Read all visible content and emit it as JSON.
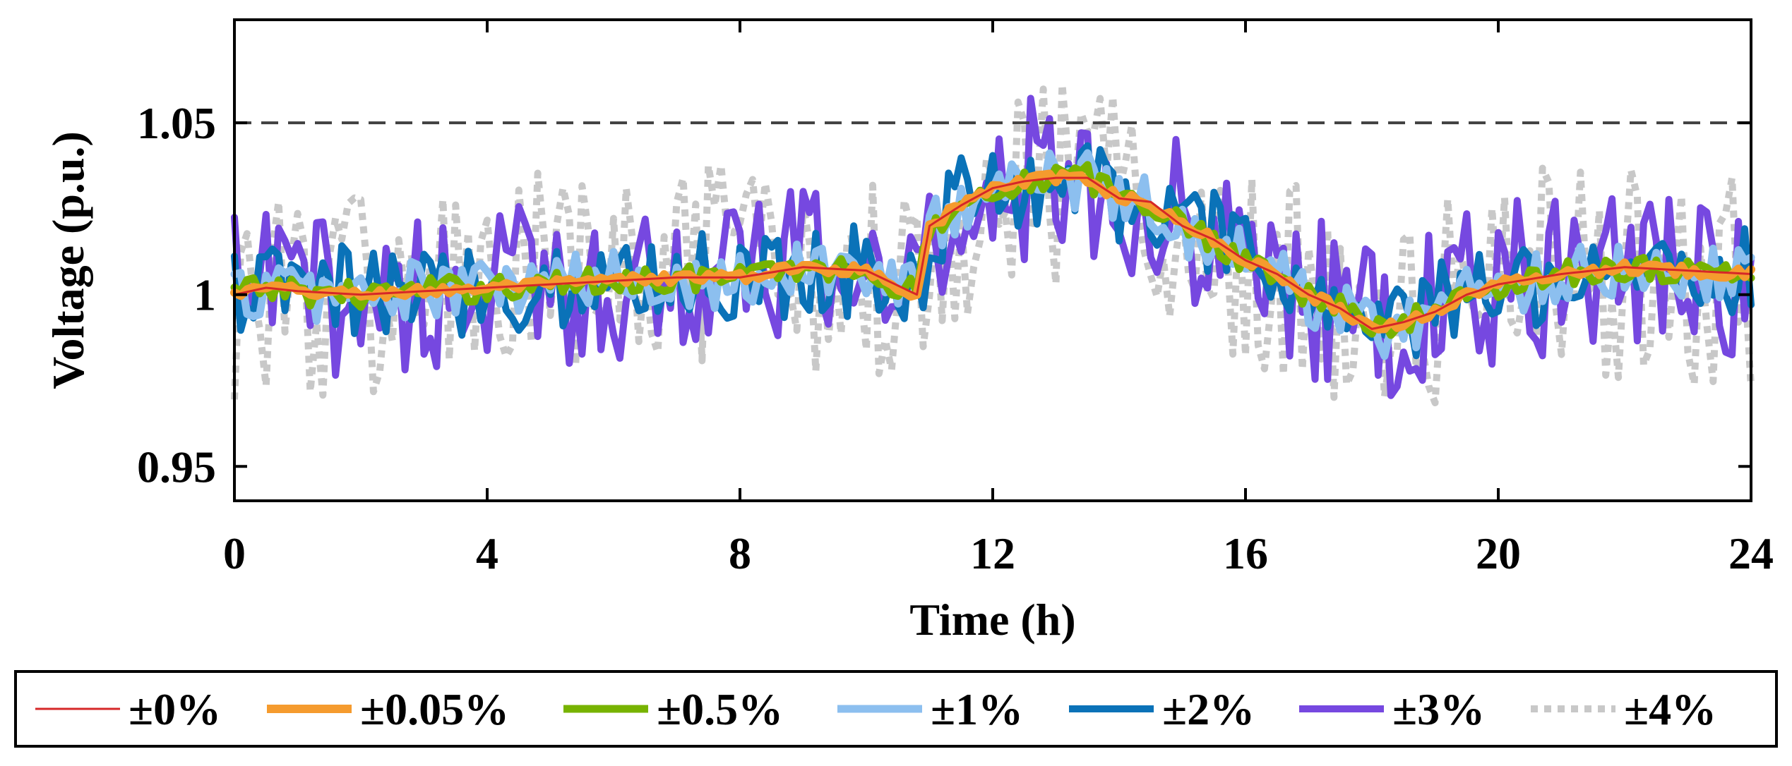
{
  "chart_data": {
    "type": "line",
    "title": "",
    "xlabel": "Time (h)",
    "ylabel": "Voltage (p.u.)",
    "xlim": [
      0,
      24
    ],
    "ylim": [
      0.94,
      1.08
    ],
    "xticks": [
      0,
      4,
      8,
      12,
      16,
      20,
      24
    ],
    "xtick_labels": [
      "0",
      "4",
      "8",
      "12",
      "16",
      "20",
      "24"
    ],
    "yticks": [
      0.95,
      1.0,
      1.05
    ],
    "ytick_labels": [
      "0.95",
      "1",
      "1.05"
    ],
    "grid": false,
    "reference_line": {
      "y": 1.05,
      "style": "dashed",
      "color": "#404040"
    },
    "legend_position": "bottom-outside",
    "base_profile": {
      "x": [
        0,
        0.5,
        1,
        2,
        3,
        4,
        5,
        6,
        7,
        8,
        9,
        10,
        10.8,
        11,
        11.5,
        12,
        12.5,
        13,
        13.5,
        14,
        14.5,
        15,
        15.5,
        16,
        16.5,
        17,
        17.5,
        18,
        18.5,
        19,
        19.5,
        20,
        21,
        22,
        23,
        24
      ],
      "y": [
        1.0,
        1.002,
        1.001,
        1.0,
        1.001,
        1.002,
        1.003,
        1.004,
        1.005,
        1.005,
        1.008,
        1.007,
        1.0,
        1.02,
        1.026,
        1.031,
        1.033,
        1.034,
        1.034,
        1.028,
        1.027,
        1.02,
        1.016,
        1.01,
        1.006,
        1.0,
        0.996,
        0.99,
        0.992,
        0.995,
        1.0,
        1.003,
        1.006,
        1.008,
        1.007,
        1.006
      ]
    },
    "series": [
      {
        "name": "±0%",
        "color": "#d62728",
        "width": 3,
        "dash": "",
        "noise_amplitude": 0.0
      },
      {
        "name": "±0.05%",
        "color": "#f59b2e",
        "width": 12,
        "dash": "",
        "noise_amplitude": 0.0015
      },
      {
        "name": "±0.5%",
        "color": "#77b300",
        "width": 11,
        "dash": "",
        "noise_amplitude": 0.004
      },
      {
        "name": "±1%",
        "color": "#8cbfef",
        "width": 11,
        "dash": "",
        "noise_amplitude": 0.009
      },
      {
        "name": "±2%",
        "color": "#0a72b8",
        "width": 10,
        "dash": "",
        "noise_amplitude": 0.014
      },
      {
        "name": "±3%",
        "color": "#7648e0",
        "width": 10,
        "dash": "",
        "noise_amplitude": 0.024
      },
      {
        "name": "±4%",
        "color": "#c8c8c8",
        "width": 10,
        "dash": "dotted",
        "noise_amplitude": 0.033
      }
    ]
  }
}
